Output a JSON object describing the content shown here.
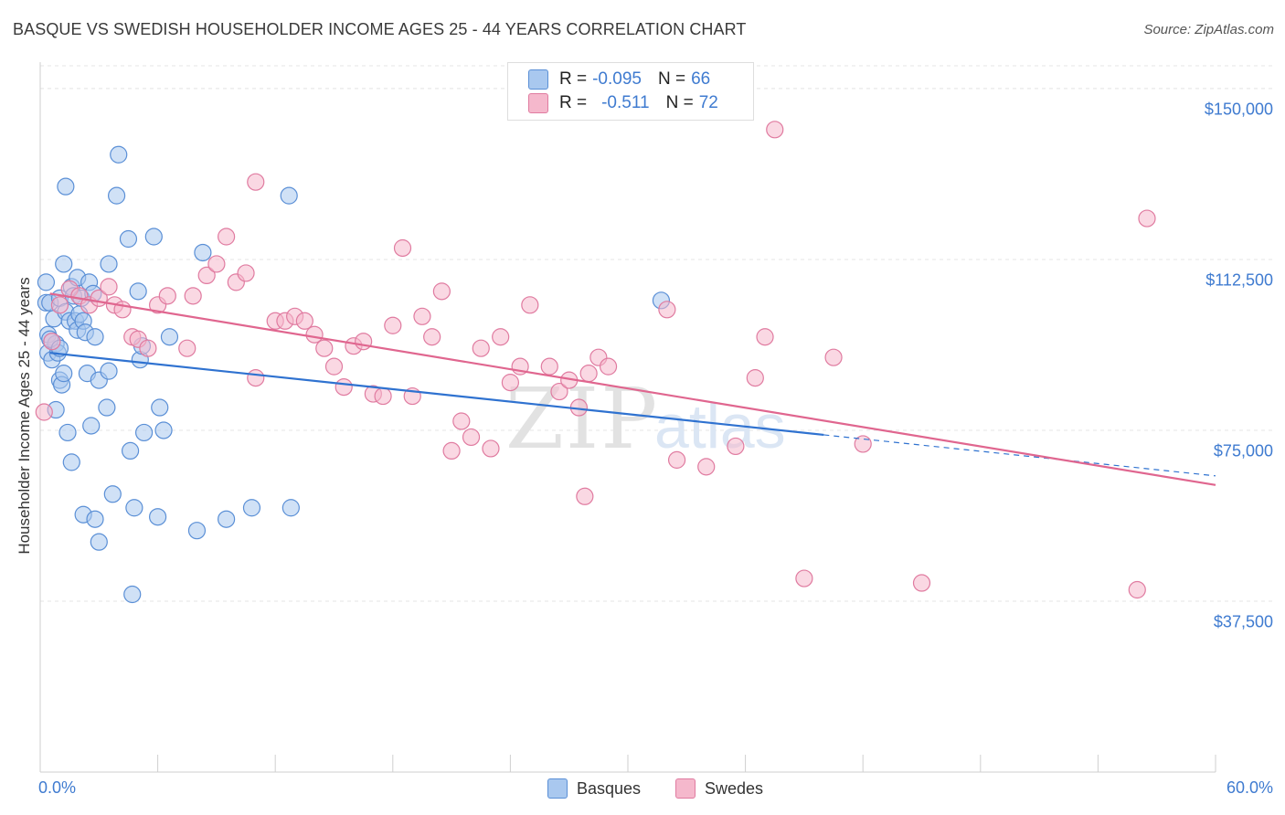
{
  "header": {
    "title": "BASQUE VS SWEDISH HOUSEHOLDER INCOME AGES 25 - 44 YEARS CORRELATION CHART",
    "source": "Source: ZipAtlas.com"
  },
  "legend": {
    "rows": [
      {
        "r_label": "R = ",
        "r_value": "-0.095",
        "n_label": "N = ",
        "n_value": "66"
      },
      {
        "r_label": "R = ",
        "r_value": "-0.511",
        "n_label": "N = ",
        "n_value": "72"
      }
    ]
  },
  "watermark": {
    "zip": "ZIP",
    "atlas": "atlas"
  },
  "colors": {
    "basques_fill": "#a9c8ef",
    "basques_stroke": "#5a8fd6",
    "basques_line": "#2f72d0",
    "swedes_fill": "#f5b8cc",
    "swedes_stroke": "#e07ba0",
    "swedes_line": "#e0668f",
    "tick_text": "#3f7bd0"
  },
  "chart_data": {
    "type": "scatter",
    "title": "BASQUE VS SWEDISH HOUSEHOLDER INCOME AGES 25 - 44 YEARS CORRELATION CHART",
    "xlabel": "",
    "ylabel": "Householder Income Ages 25 - 44 years",
    "xlim": [
      0,
      60
    ],
    "ylim": [
      0,
      155000
    ],
    "x_tick_labels": [
      "0.0%",
      "60.0%"
    ],
    "y_ticks": [
      {
        "value": 150000,
        "label": "$150,000"
      },
      {
        "value": 112500,
        "label": "$112,500"
      },
      {
        "value": 75000,
        "label": "$75,000"
      },
      {
        "value": 37500,
        "label": "$37,500"
      }
    ],
    "grid": true,
    "legend_position": "bottom-center",
    "series": [
      {
        "name": "Basques",
        "r": -0.095,
        "n": 66,
        "trend": {
          "x0": 0.5,
          "y0": 92000,
          "x1": 40,
          "y1": 74000,
          "dash_to_x": 60,
          "dash_to_y": 65000
        },
        "points": [
          [
            0.3,
            103000
          ],
          [
            0.3,
            107500
          ],
          [
            0.4,
            96000
          ],
          [
            0.4,
            92000
          ],
          [
            0.5,
            103000
          ],
          [
            0.6,
            90500
          ],
          [
            0.7,
            99500
          ],
          [
            0.8,
            94000
          ],
          [
            0.8,
            79500
          ],
          [
            0.9,
            92000
          ],
          [
            1.0,
            86000
          ],
          [
            1.0,
            104000
          ],
          [
            1.1,
            85000
          ],
          [
            1.2,
            111500
          ],
          [
            1.2,
            87500
          ],
          [
            1.3,
            128500
          ],
          [
            1.3,
            101000
          ],
          [
            1.4,
            74500
          ],
          [
            1.5,
            99000
          ],
          [
            1.6,
            106500
          ],
          [
            1.6,
            68000
          ],
          [
            1.7,
            104500
          ],
          [
            1.8,
            99000
          ],
          [
            1.9,
            108500
          ],
          [
            1.9,
            97000
          ],
          [
            2.0,
            100500
          ],
          [
            2.1,
            104000
          ],
          [
            2.2,
            99000
          ],
          [
            2.2,
            56500
          ],
          [
            2.3,
            96500
          ],
          [
            2.4,
            87500
          ],
          [
            2.5,
            107500
          ],
          [
            2.6,
            76000
          ],
          [
            2.7,
            105000
          ],
          [
            2.8,
            95500
          ],
          [
            2.8,
            55500
          ],
          [
            3.0,
            50500
          ],
          [
            3.0,
            86000
          ],
          [
            3.4,
            80000
          ],
          [
            3.5,
            111500
          ],
          [
            3.5,
            88000
          ],
          [
            3.7,
            61000
          ],
          [
            3.9,
            126500
          ],
          [
            4.0,
            135500
          ],
          [
            4.5,
            117000
          ],
          [
            4.6,
            70500
          ],
          [
            4.7,
            39000
          ],
          [
            4.8,
            58000
          ],
          [
            5.0,
            105500
          ],
          [
            5.1,
            90500
          ],
          [
            5.2,
            93500
          ],
          [
            5.3,
            74500
          ],
          [
            5.8,
            117500
          ],
          [
            6.0,
            56000
          ],
          [
            6.1,
            80000
          ],
          [
            6.3,
            75000
          ],
          [
            6.6,
            95500
          ],
          [
            8.0,
            53000
          ],
          [
            8.3,
            114000
          ],
          [
            9.5,
            55500
          ],
          [
            10.8,
            58000
          ],
          [
            12.7,
            126500
          ],
          [
            12.8,
            58000
          ],
          [
            31.7,
            103500
          ],
          [
            0.5,
            95000
          ],
          [
            1.0,
            93000
          ]
        ]
      },
      {
        "name": "Swedes",
        "r": -0.511,
        "n": 72,
        "trend": {
          "x0": 0.5,
          "y0": 105000,
          "x1": 60,
          "y1": 63000
        },
        "points": [
          [
            0.2,
            79000
          ],
          [
            0.6,
            94500
          ],
          [
            1.0,
            102500
          ],
          [
            1.5,
            106000
          ],
          [
            2.0,
            104500
          ],
          [
            2.5,
            102500
          ],
          [
            3.0,
            104000
          ],
          [
            3.5,
            106500
          ],
          [
            3.8,
            102500
          ],
          [
            4.2,
            101500
          ],
          [
            4.7,
            95500
          ],
          [
            5.0,
            95000
          ],
          [
            5.5,
            93000
          ],
          [
            6.0,
            102500
          ],
          [
            6.5,
            104500
          ],
          [
            7.5,
            93000
          ],
          [
            7.8,
            104500
          ],
          [
            8.5,
            109000
          ],
          [
            9.0,
            111500
          ],
          [
            9.5,
            117500
          ],
          [
            10.0,
            107500
          ],
          [
            10.5,
            109500
          ],
          [
            11.0,
            86500
          ],
          [
            11.0,
            129500
          ],
          [
            12.0,
            99000
          ],
          [
            12.5,
            99000
          ],
          [
            13.0,
            100000
          ],
          [
            13.5,
            99000
          ],
          [
            14.0,
            96000
          ],
          [
            14.5,
            93000
          ],
          [
            15.0,
            89000
          ],
          [
            15.5,
            84500
          ],
          [
            16.0,
            93500
          ],
          [
            16.5,
            94500
          ],
          [
            17.0,
            83000
          ],
          [
            17.5,
            82500
          ],
          [
            18.0,
            98000
          ],
          [
            18.5,
            115000
          ],
          [
            19.0,
            82500
          ],
          [
            19.5,
            100000
          ],
          [
            20.0,
            95500
          ],
          [
            20.5,
            105500
          ],
          [
            21.0,
            70500
          ],
          [
            21.5,
            77000
          ],
          [
            22.0,
            73500
          ],
          [
            22.5,
            93000
          ],
          [
            23.0,
            71000
          ],
          [
            23.5,
            95500
          ],
          [
            24.0,
            85500
          ],
          [
            24.5,
            89000
          ],
          [
            25.0,
            102500
          ],
          [
            26.0,
            89000
          ],
          [
            26.5,
            83500
          ],
          [
            27.0,
            86000
          ],
          [
            27.5,
            80000
          ],
          [
            27.8,
            60500
          ],
          [
            28.0,
            87500
          ],
          [
            28.5,
            91000
          ],
          [
            29.0,
            89000
          ],
          [
            32.0,
            101500
          ],
          [
            32.5,
            68500
          ],
          [
            34.0,
            67000
          ],
          [
            35.5,
            71500
          ],
          [
            36.5,
            86500
          ],
          [
            37.0,
            95500
          ],
          [
            37.5,
            141000
          ],
          [
            39.0,
            42500
          ],
          [
            40.5,
            91000
          ],
          [
            42.0,
            72000
          ],
          [
            45.0,
            41500
          ],
          [
            56.0,
            40000
          ],
          [
            56.5,
            121500
          ]
        ]
      }
    ]
  },
  "bottom_legend": {
    "basques": "Basques",
    "swedes": "Swedes"
  }
}
